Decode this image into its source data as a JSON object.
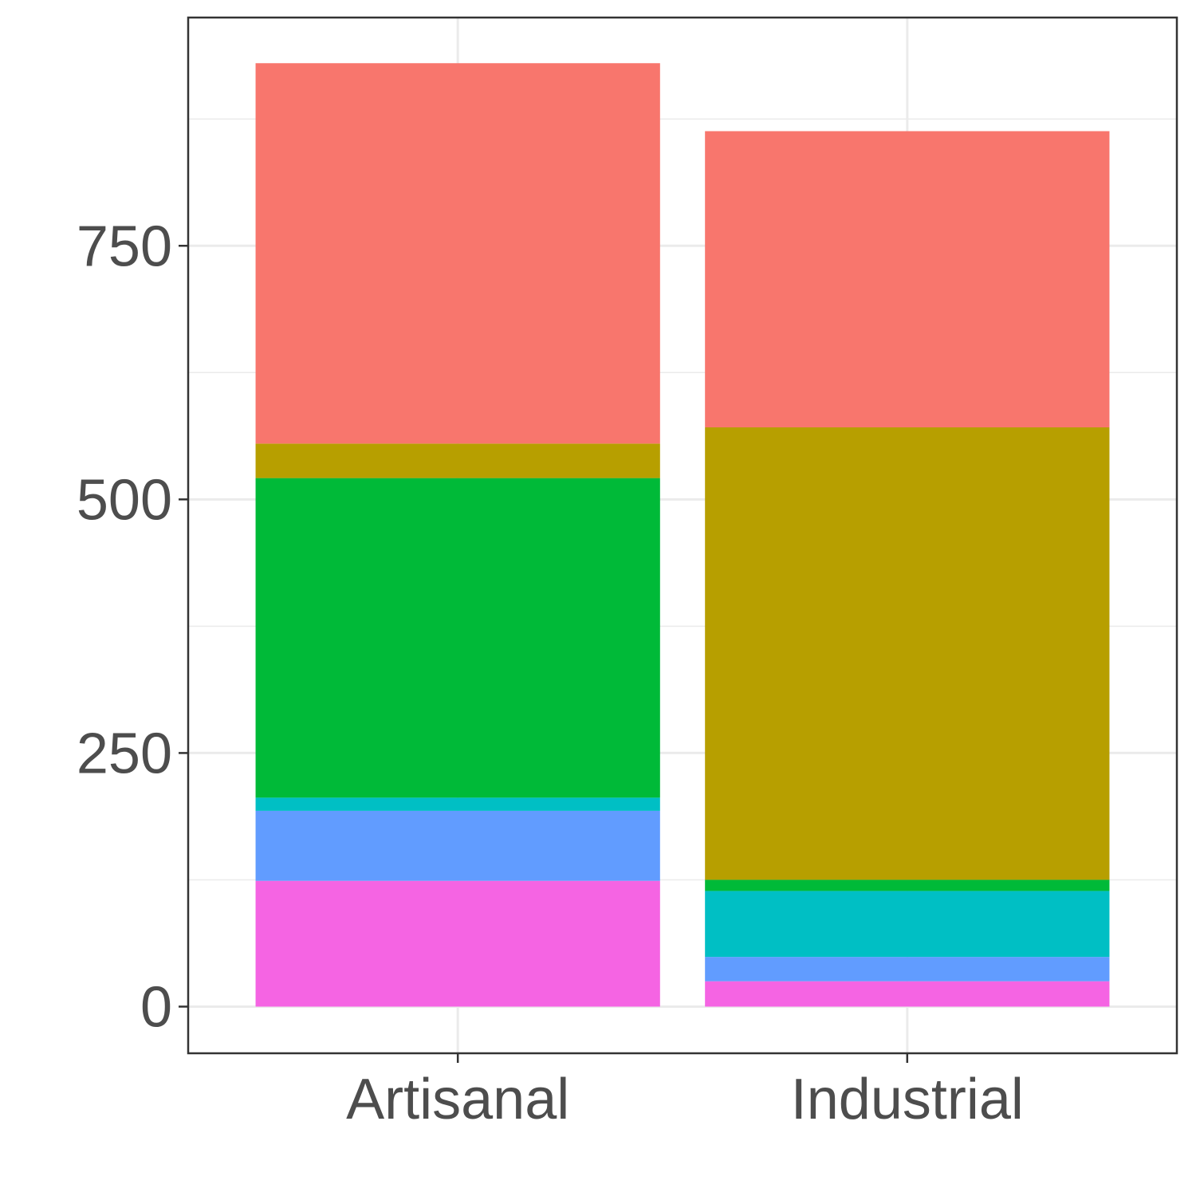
{
  "chart_data": {
    "type": "bar",
    "stacked": true,
    "categories": [
      "Artisanal",
      "Industrial"
    ],
    "series": [
      {
        "color": "#F564E3",
        "values": [
          124,
          25
        ]
      },
      {
        "color": "#619CFF",
        "values": [
          69,
          24
        ]
      },
      {
        "color": "#00BFC4",
        "values": [
          13,
          65
        ]
      },
      {
        "color": "#00BA38",
        "values": [
          315,
          11
        ]
      },
      {
        "color": "#B79F00",
        "values": [
          34,
          446
        ]
      },
      {
        "color": "#F8766D",
        "values": [
          375,
          292
        ]
      }
    ],
    "title": "",
    "xlabel": "",
    "ylabel": "",
    "ylim": [
      -46,
      975
    ],
    "yticks": [
      "0",
      "250",
      "500",
      "750"
    ],
    "grid": true,
    "legend": "none"
  }
}
